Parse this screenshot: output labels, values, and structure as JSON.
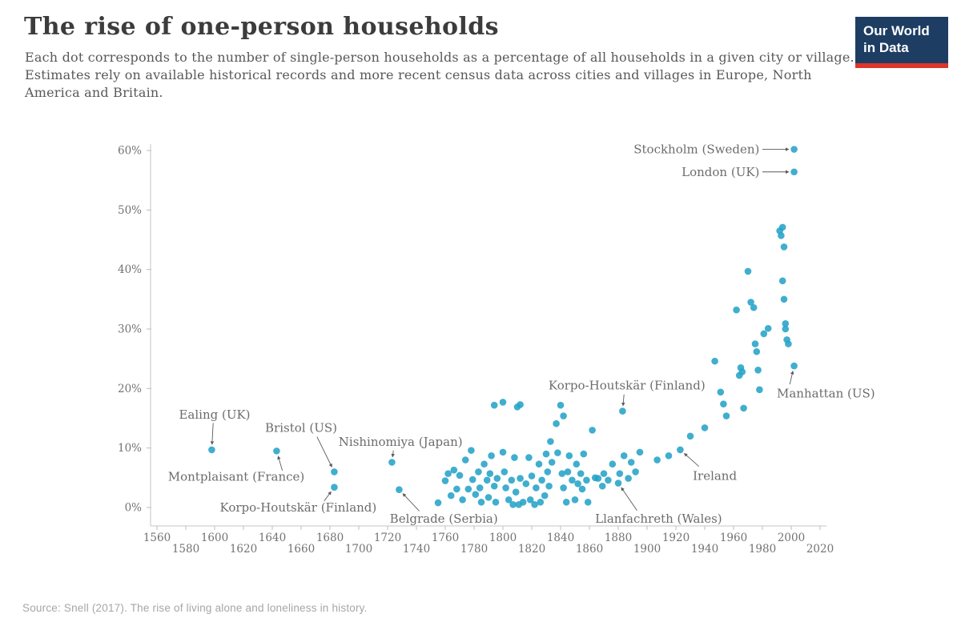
{
  "header": {
    "title": "The rise of one-person households",
    "subtitle": "Each dot corresponds to the number of single-person households as a percentage of all households in a given city or village. Estimates rely on available historical records and more recent census data across cities and villages in Europe, North America and Britain."
  },
  "logo": {
    "line1": "Our World",
    "line2": "in Data",
    "bg_color": "#1d3d63",
    "stripe_color": "#dc352a"
  },
  "footer": {
    "source": "Source: Snell (2017). The rise of living alone and loneliness in history."
  },
  "chart_data": {
    "type": "scatter",
    "title": "The rise of one-person households",
    "xlabel": "",
    "ylabel": "",
    "xlim": [
      1550,
      2035
    ],
    "ylim": [
      -3,
      63
    ],
    "grid": false,
    "legend": "none",
    "dot_color": "#25a3c7",
    "x_ticks": [
      1560,
      1580,
      1600,
      1620,
      1640,
      1660,
      1680,
      1700,
      1720,
      1740,
      1760,
      1780,
      1800,
      1820,
      1840,
      1860,
      1880,
      1900,
      1920,
      1940,
      1960,
      1980,
      2000,
      2020
    ],
    "y_ticks": [
      0,
      10,
      20,
      30,
      40,
      50,
      60
    ],
    "y_tick_labels": [
      "0%",
      "10%",
      "20%",
      "30%",
      "40%",
      "50%",
      "60%"
    ],
    "points": [
      [
        1598,
        9.7
      ],
      [
        1643,
        9.5
      ],
      [
        1683,
        6.0
      ],
      [
        1683,
        3.4
      ],
      [
        1723,
        7.6
      ],
      [
        1728,
        3.0
      ],
      [
        1755,
        0.8
      ],
      [
        1760,
        4.5
      ],
      [
        1762,
        5.7
      ],
      [
        1764,
        2.0
      ],
      [
        1766,
        6.3
      ],
      [
        1768,
        3.1
      ],
      [
        1770,
        5.4
      ],
      [
        1772,
        1.3
      ],
      [
        1774,
        8.0
      ],
      [
        1776,
        3.1
      ],
      [
        1778,
        9.6
      ],
      [
        1779,
        4.7
      ],
      [
        1781,
        2.2
      ],
      [
        1783,
        6.0
      ],
      [
        1784,
        3.3
      ],
      [
        1785,
        0.9
      ],
      [
        1787,
        7.3
      ],
      [
        1789,
        4.6
      ],
      [
        1790,
        1.7
      ],
      [
        1791,
        5.7
      ],
      [
        1792,
        8.7
      ],
      [
        1794,
        3.6
      ],
      [
        1794,
        17.2
      ],
      [
        1795,
        0.9
      ],
      [
        1796,
        4.9
      ],
      [
        1800,
        17.7
      ],
      [
        1800,
        9.3
      ],
      [
        1801,
        6.0
      ],
      [
        1802,
        3.3
      ],
      [
        1804,
        1.3
      ],
      [
        1806,
        4.6
      ],
      [
        1807,
        0.5
      ],
      [
        1808,
        8.4
      ],
      [
        1809,
        2.6
      ],
      [
        1810,
        16.9
      ],
      [
        1811,
        0.5
      ],
      [
        1812,
        17.3
      ],
      [
        1812,
        4.9
      ],
      [
        1814,
        0.9
      ],
      [
        1816,
        4.0
      ],
      [
        1818,
        8.4
      ],
      [
        1819,
        1.3
      ],
      [
        1820,
        5.3
      ],
      [
        1822,
        0.5
      ],
      [
        1823,
        3.3
      ],
      [
        1825,
        7.3
      ],
      [
        1826,
        0.9
      ],
      [
        1827,
        4.6
      ],
      [
        1829,
        2.0
      ],
      [
        1830,
        9.0
      ],
      [
        1831,
        6.0
      ],
      [
        1832,
        3.6
      ],
      [
        1833,
        11.1
      ],
      [
        1834,
        7.6
      ],
      [
        1837,
        14.1
      ],
      [
        1838,
        9.2
      ],
      [
        1840,
        17.2
      ],
      [
        1841,
        5.7
      ],
      [
        1842,
        15.4
      ],
      [
        1842,
        3.3
      ],
      [
        1844,
        0.9
      ],
      [
        1845,
        6.0
      ],
      [
        1846,
        8.7
      ],
      [
        1848,
        4.6
      ],
      [
        1850,
        1.3
      ],
      [
        1851,
        7.3
      ],
      [
        1852,
        4.0
      ],
      [
        1854,
        5.7
      ],
      [
        1855,
        3.1
      ],
      [
        1856,
        9.0
      ],
      [
        1858,
        4.6
      ],
      [
        1859,
        0.9
      ],
      [
        1862,
        13.0
      ],
      [
        1864,
        5.0
      ],
      [
        1866,
        4.9
      ],
      [
        1869,
        3.6
      ],
      [
        1870,
        5.7
      ],
      [
        1873,
        4.6
      ],
      [
        1876,
        7.3
      ],
      [
        1880,
        4.1
      ],
      [
        1881,
        5.7
      ],
      [
        1883,
        16.2
      ],
      [
        1884,
        8.7
      ],
      [
        1887,
        4.9
      ],
      [
        1889,
        7.6
      ],
      [
        1892,
        6.0
      ],
      [
        1895,
        9.3
      ],
      [
        1907,
        8.0
      ],
      [
        1915,
        8.7
      ],
      [
        1923,
        9.7
      ],
      [
        1930,
        12.0
      ],
      [
        1940,
        13.4
      ],
      [
        1947,
        24.6
      ],
      [
        1951,
        19.4
      ],
      [
        1953,
        17.4
      ],
      [
        1955,
        15.4
      ],
      [
        1962,
        33.2
      ],
      [
        1964,
        22.2
      ],
      [
        1965,
        23.5
      ],
      [
        1966,
        22.8
      ],
      [
        1967,
        16.7
      ],
      [
        1970,
        39.7
      ],
      [
        1972,
        34.5
      ],
      [
        1974,
        33.6
      ],
      [
        1975,
        27.5
      ],
      [
        1976,
        26.2
      ],
      [
        1977,
        23.1
      ],
      [
        1978,
        19.8
      ],
      [
        1981,
        29.2
      ],
      [
        1984,
        30.1
      ],
      [
        1992,
        46.5
      ],
      [
        1993,
        45.7
      ],
      [
        1994,
        47.1
      ],
      [
        1994,
        38.1
      ],
      [
        1995,
        43.8
      ],
      [
        1995,
        35.0
      ],
      [
        1996,
        30.9
      ],
      [
        1996,
        30.0
      ],
      [
        1997,
        28.2
      ],
      [
        1998,
        27.5
      ],
      [
        2002,
        60.2
      ],
      [
        2002,
        56.4
      ],
      [
        2002,
        23.8
      ]
    ],
    "annotations": [
      {
        "label": "Ealing (UK)",
        "point": [
          1598,
          9.7
        ],
        "text": [
          1600,
          15.6
        ],
        "anchor": "middle",
        "tail": [
          1599,
          14.2
        ]
      },
      {
        "label": "Montplaisant (France)",
        "point": [
          1643,
          9.5
        ],
        "text": [
          1615,
          5.2
        ],
        "anchor": "middle",
        "tail": [
          1647,
          6.2
        ]
      },
      {
        "label": "Bristol (US)",
        "point": [
          1683,
          6.0
        ],
        "text": [
          1660,
          13.4
        ],
        "anchor": "middle",
        "tail": [
          1671,
          11.9
        ]
      },
      {
        "label": "Korpo-Houtskär (Finland)",
        "point": [
          1683,
          3.4
        ],
        "text": [
          1658,
          0.0
        ],
        "anchor": "middle",
        "tail": [
          1676,
          1.1
        ]
      },
      {
        "label": "Nishinomiya (Japan)",
        "point": [
          1723,
          7.6
        ],
        "text": [
          1729,
          11.0
        ],
        "anchor": "middle",
        "tail": [
          1724,
          9.6
        ]
      },
      {
        "label": "Belgrade (Serbia)",
        "point": [
          1728,
          3.0
        ],
        "text": [
          1759,
          -1.9
        ],
        "anchor": "middle",
        "tail": [
          1742,
          -0.6
        ]
      },
      {
        "label": "Korpo-Houtskär (Finland)",
        "point": [
          1883,
          16.2
        ],
        "text": [
          1886,
          20.5
        ],
        "anchor": "middle",
        "tail": [
          1884,
          19.0
        ]
      },
      {
        "label": "Llanfachreth (Wales)",
        "point": [
          1880,
          4.1
        ],
        "text": [
          1908,
          -1.9
        ],
        "anchor": "middle",
        "tail": [
          1893,
          -0.5
        ]
      },
      {
        "label": "Ireland",
        "point": [
          1923,
          9.7
        ],
        "text": [
          1947,
          5.3
        ],
        "anchor": "middle",
        "tail": [
          1936,
          6.9
        ]
      },
      {
        "label": "Stockholm (Sweden)",
        "point": [
          2002,
          60.2
        ],
        "text": [
          1978,
          60.2
        ],
        "anchor": "end",
        "tail": [
          1980,
          60.2
        ]
      },
      {
        "label": "London (UK)",
        "point": [
          2002,
          56.4
        ],
        "text": [
          1978,
          56.4
        ],
        "anchor": "end",
        "tail": [
          1980,
          56.4
        ]
      },
      {
        "label": "Manhattan (US)",
        "point": [
          2002,
          23.8
        ],
        "text": [
          1990,
          19.2
        ],
        "anchor": "start",
        "tail": [
          1999,
          20.7
        ]
      }
    ]
  }
}
